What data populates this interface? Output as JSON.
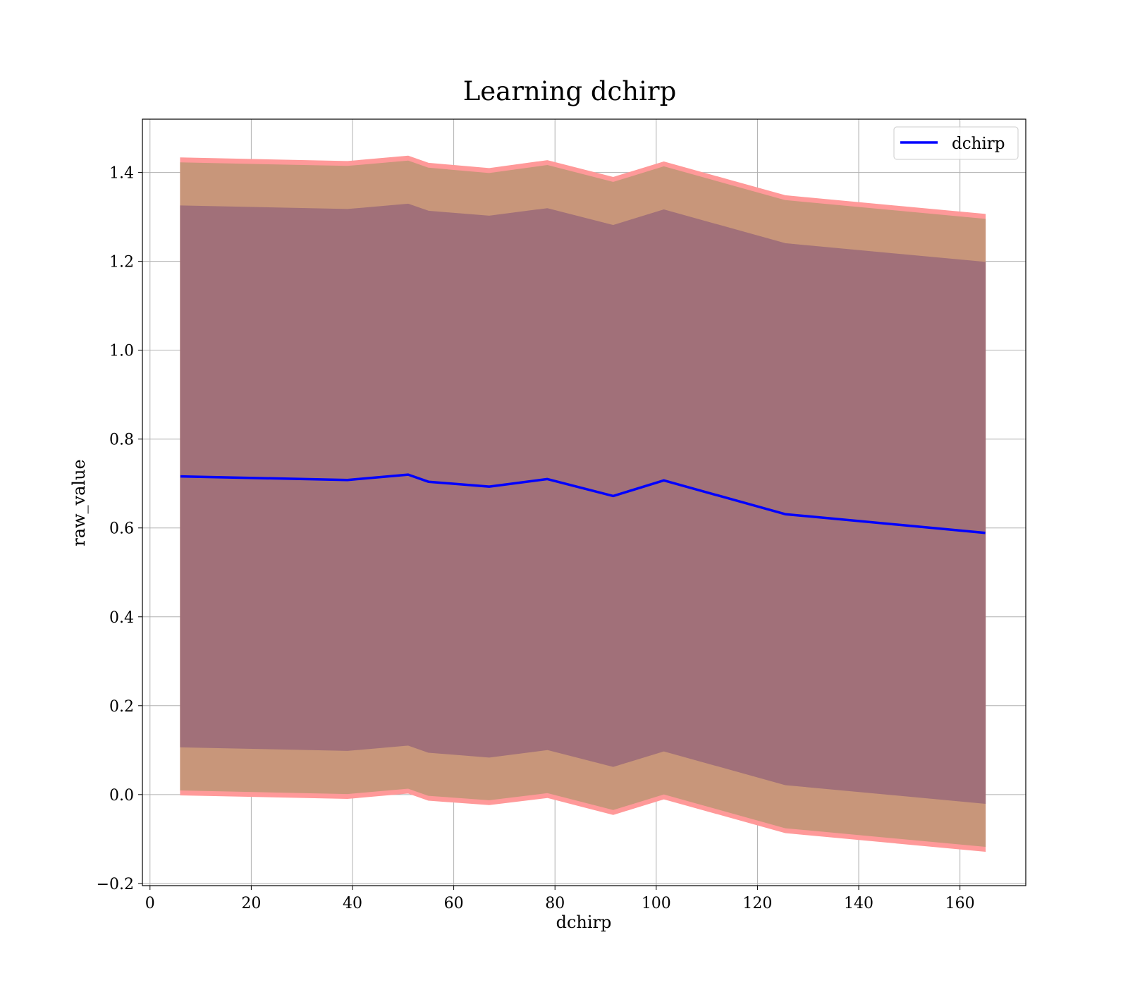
{
  "chart_data": {
    "type": "line",
    "title": "Learning dchirp",
    "xlabel": "dchirp",
    "ylabel": "raw_value",
    "xlim": [
      -1.5,
      173
    ],
    "ylim": [
      -0.205,
      1.52
    ],
    "grid": true,
    "legend_position": "top-right",
    "xticks": [
      0,
      20,
      40,
      60,
      80,
      100,
      120,
      140,
      160
    ],
    "yticks": [
      -0.2,
      0.0,
      0.2,
      0.4,
      0.6,
      0.8,
      1.0,
      1.2,
      1.4
    ],
    "xtick_labels": [
      "0",
      "20",
      "40",
      "60",
      "80",
      "100",
      "120",
      "140",
      "160"
    ],
    "ytick_labels": [
      "−0.2",
      "0.0",
      "0.2",
      "0.4",
      "0.6",
      "0.8",
      "1.0",
      "1.2",
      "1.4"
    ],
    "x": [
      6,
      39,
      51,
      55,
      67,
      78.5,
      91.5,
      101.5,
      125.5,
      165
    ],
    "series": [
      {
        "name": "dchirp",
        "color": "#0000ff",
        "values": [
          0.716,
          0.708,
          0.72,
          0.704,
          0.693,
          0.71,
          0.672,
          0.707,
          0.631,
          0.589
        ]
      }
    ],
    "bands": [
      {
        "color": "#ff9999",
        "upper": [
          1.433,
          1.425,
          1.437,
          1.421,
          1.409,
          1.427,
          1.389,
          1.424,
          1.348,
          1.306
        ],
        "lower": [
          -0.001,
          -0.009,
          0.003,
          -0.013,
          -0.023,
          -0.007,
          -0.045,
          -0.01,
          -0.086,
          -0.128
        ]
      },
      {
        "color": "#c8967a",
        "upper": [
          1.422,
          1.414,
          1.426,
          1.41,
          1.398,
          1.416,
          1.378,
          1.413,
          1.337,
          1.295
        ],
        "lower": [
          0.01,
          0.002,
          0.014,
          -0.002,
          -0.012,
          0.004,
          -0.034,
          0.001,
          -0.075,
          -0.117
        ]
      },
      {
        "color": "#a17079",
        "upper": [
          1.325,
          1.317,
          1.329,
          1.313,
          1.302,
          1.319,
          1.281,
          1.316,
          1.24,
          1.198
        ],
        "lower": [
          0.107,
          0.099,
          0.111,
          0.095,
          0.084,
          0.101,
          0.063,
          0.098,
          0.022,
          -0.02
        ]
      }
    ]
  }
}
